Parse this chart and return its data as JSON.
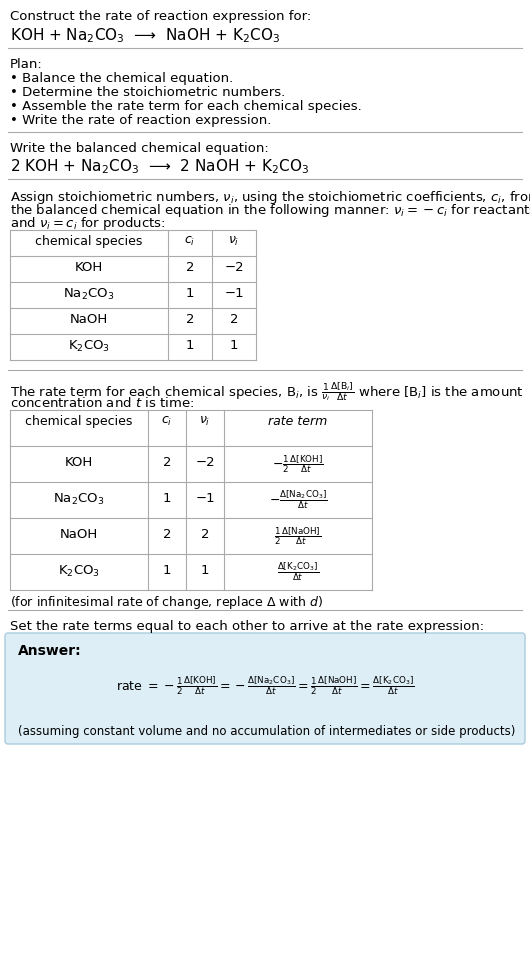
{
  "bg_color": "#ffffff",
  "text_color": "#000000",
  "answer_bg": "#ddeef6",
  "answer_border": "#aaccdd",
  "title_text": "Construct the rate of reaction expression for:",
  "unbalanced_eq": "KOH + Na$_2$CO$_3$  ⟶  NaOH + K$_2$CO$_3$",
  "plan_header": "Plan:",
  "plan_items": [
    "• Balance the chemical equation.",
    "• Determine the stoichiometric numbers.",
    "• Assemble the rate term for each chemical species.",
    "• Write the rate of reaction expression."
  ],
  "balanced_header": "Write the balanced chemical equation:",
  "balanced_eq": "2 KOH + Na$_2$CO$_3$  ⟶  2 NaOH + K$_2$CO$_3$",
  "assign_text1": "Assign stoichiometric numbers, $\\nu_i$, using the stoichiometric coefficients, $c_i$, from",
  "assign_text2": "the balanced chemical equation in the following manner: $\\nu_i = -c_i$ for reactants",
  "assign_text3": "and $\\nu_i = c_i$ for products:",
  "table1_headers": [
    "chemical species",
    "$c_i$",
    "$\\nu_i$"
  ],
  "table1_rows": [
    [
      "KOH",
      "2",
      "−2"
    ],
    [
      "Na$_2$CO$_3$",
      "1",
      "−1"
    ],
    [
      "NaOH",
      "2",
      "2"
    ],
    [
      "K$_2$CO$_3$",
      "1",
      "1"
    ]
  ],
  "rate_text1": "The rate term for each chemical species, B$_i$, is $\\frac{1}{\\nu_i}\\frac{\\Delta[\\mathrm{B}_i]}{\\Delta t}$ where [B$_i$] is the amount",
  "rate_text2": "concentration and $t$ is time:",
  "table2_headers": [
    "chemical species",
    "$c_i$",
    "$\\nu_i$",
    "rate term"
  ],
  "table2_rows": [
    [
      "KOH",
      "2",
      "−2",
      "$-\\frac{1}{2}\\frac{\\Delta[\\mathrm{KOH}]}{\\Delta t}$"
    ],
    [
      "Na$_2$CO$_3$",
      "1",
      "−1",
      "$-\\frac{\\Delta[\\mathrm{Na_2CO_3}]}{\\Delta t}$"
    ],
    [
      "NaOH",
      "2",
      "2",
      "$\\frac{1}{2}\\frac{\\Delta[\\mathrm{NaOH}]}{\\Delta t}$"
    ],
    [
      "K$_2$CO$_3$",
      "1",
      "1",
      "$\\frac{\\Delta[\\mathrm{K_2CO_3}]}{\\Delta t}$"
    ]
  ],
  "infinitesimal_note": "(for infinitesimal rate of change, replace Δ with $d$)",
  "set_rate_text": "Set the rate terms equal to each other to arrive at the rate expression:",
  "answer_label": "Answer:",
  "answer_note": "(assuming constant volume and no accumulation of intermediates or side products)"
}
